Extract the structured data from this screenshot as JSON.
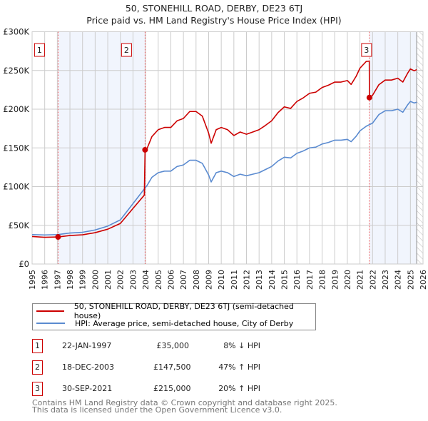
{
  "chart_data": {
    "type": "line",
    "title": "50, STONEHILL ROAD, DERBY, DE23 6TJ",
    "subtitle": "Price paid vs. HM Land Registry's House Price Index (HPI)",
    "xlim": [
      1995,
      2026
    ],
    "ylim": [
      0,
      300000
    ],
    "x_ticks": [
      "1995",
      "1996",
      "1997",
      "1998",
      "1999",
      "2000",
      "2001",
      "2002",
      "2003",
      "2004",
      "2005",
      "2006",
      "2007",
      "2008",
      "2009",
      "2010",
      "2011",
      "2012",
      "2013",
      "2014",
      "2015",
      "2016",
      "2017",
      "2018",
      "2019",
      "2020",
      "2021",
      "2022",
      "2023",
      "2024",
      "2025",
      "2026"
    ],
    "y_ticks": [
      {
        "v": 0,
        "label": "£0"
      },
      {
        "v": 50000,
        "label": "£50K"
      },
      {
        "v": 100000,
        "label": "£100K"
      },
      {
        "v": 150000,
        "label": "£150K"
      },
      {
        "v": 200000,
        "label": "£200K"
      },
      {
        "v": 250000,
        "label": "£250K"
      },
      {
        "v": 300000,
        "label": "£300K"
      }
    ],
    "grid": true,
    "series": [
      {
        "name": "50, STONEHILL ROAD, DERBY, DE23 6TJ (semi-detached house)",
        "color": "#cc0000",
        "x": [
          1995,
          1996,
          1997.06,
          1998,
          1999,
          2000,
          2001,
          2002,
          2003,
          2003.9,
          2003.96,
          2004.1,
          2004.5,
          2005,
          2005.5,
          2006,
          2006.5,
          2007,
          2007.5,
          2008,
          2008.5,
          2009,
          2009.2,
          2009.6,
          2010,
          2010.5,
          2011,
          2011.5,
          2012,
          2012.5,
          2013,
          2013.5,
          2014,
          2014.5,
          2015,
          2015.5,
          2016,
          2016.5,
          2017,
          2017.5,
          2018,
          2018.5,
          2019,
          2019.5,
          2020,
          2020.3,
          2020.7,
          2021,
          2021.5,
          2021.74,
          2021.75,
          2022,
          2022.5,
          2023,
          2023.5,
          2024,
          2024.4,
          2024.8,
          2025,
          2025.3,
          2025.5
        ],
        "values": [
          35500,
          34500,
          35000,
          36800,
          37700,
          40500,
          45000,
          52400,
          71800,
          89000,
          147500,
          148500,
          164600,
          173500,
          176400,
          176400,
          185000,
          188000,
          197000,
          197000,
          191000,
          169000,
          156000,
          173500,
          176400,
          173500,
          166000,
          170500,
          167600,
          170500,
          173500,
          179000,
          185000,
          195500,
          203000,
          201000,
          210000,
          214600,
          220500,
          222000,
          228000,
          231000,
          235000,
          235000,
          237000,
          232000,
          242500,
          253000,
          261700,
          262000,
          215000,
          218000,
          231600,
          237600,
          237600,
          240000,
          235000,
          247000,
          252000,
          249600,
          251000
        ]
      },
      {
        "name": "HPI: Average price, semi-detached house, City of Derby",
        "color": "#5b8bd0",
        "x": [
          1995,
          1996,
          1997,
          1998,
          1999,
          2000,
          2001,
          2002,
          2003,
          2003.9,
          2004.1,
          2004.5,
          2005,
          2005.5,
          2006,
          2006.5,
          2007,
          2007.5,
          2008,
          2008.5,
          2009,
          2009.2,
          2009.6,
          2010,
          2010.5,
          2011,
          2011.5,
          2012,
          2012.5,
          2013,
          2013.5,
          2014,
          2014.5,
          2015,
          2015.5,
          2016,
          2016.5,
          2017,
          2017.5,
          2018,
          2018.5,
          2019,
          2019.5,
          2020,
          2020.3,
          2020.7,
          2021,
          2021.5,
          2022,
          2022.5,
          2023,
          2023.5,
          2024,
          2024.4,
          2024.8,
          2025,
          2025.3,
          2025.5
        ],
        "values": [
          38000,
          37500,
          38000,
          40000,
          41000,
          44000,
          49000,
          57000,
          78000,
          97000,
          101000,
          112000,
          118000,
          120000,
          120000,
          126000,
          128000,
          134000,
          134000,
          130000,
          115000,
          106000,
          118000,
          120000,
          118000,
          113000,
          116000,
          114000,
          116000,
          118000,
          122000,
          126000,
          133000,
          138000,
          137000,
          143000,
          146000,
          150000,
          151000,
          155000,
          157000,
          160000,
          160000,
          161000,
          158000,
          165000,
          172000,
          178000,
          182000,
          193000,
          198000,
          198000,
          200000,
          196000,
          206000,
          210000,
          208000,
          209000
        ]
      }
    ],
    "annotations": [
      {
        "label": "1",
        "x": 1997.06,
        "value": 35000
      },
      {
        "label": "2",
        "x": 2003.96,
        "value": 147500
      },
      {
        "label": "3",
        "x": 2021.75,
        "value": 215000
      }
    ],
    "shaded_ranges": [
      [
        1997.06,
        2003.96
      ],
      [
        2021.75,
        2025.5
      ]
    ],
    "hatched_from": 2025.5,
    "legend": "below"
  },
  "transactions": [
    {
      "num": "1",
      "date": "22-JAN-1997",
      "price": "£35,000",
      "hpi": "8% ↓ HPI"
    },
    {
      "num": "2",
      "date": "18-DEC-2003",
      "price": "£147,500",
      "hpi": "47% ↑ HPI"
    },
    {
      "num": "3",
      "date": "30-SEP-2021",
      "price": "£215,000",
      "hpi": "20% ↑ HPI"
    }
  ],
  "footer": {
    "line1": "Contains HM Land Registry data © Crown copyright and database right 2025.",
    "line2": "This data is licensed under the Open Government Licence v3.0."
  }
}
